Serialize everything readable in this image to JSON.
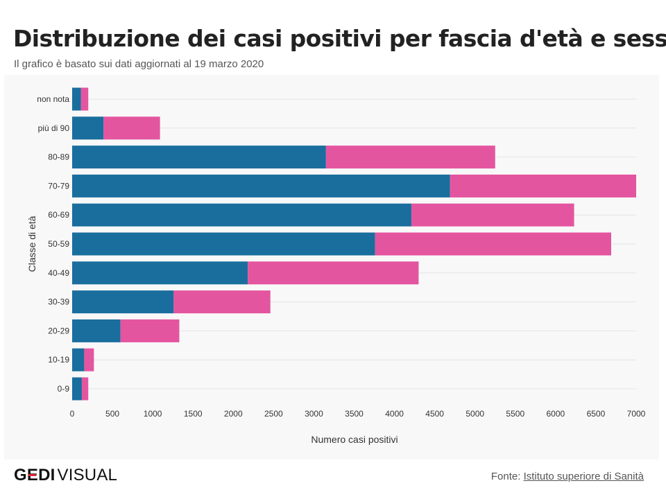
{
  "header": {
    "title": "Distribuzione dei casi positivi per fascia d'età e sesso",
    "subtitle": "Il grafico è basato sui dati aggiornati al 19 marzo 2020"
  },
  "footer": {
    "logo_bold_g": "G",
    "logo_bold_e": "E",
    "logo_bold_di": "DI",
    "logo_light": "VISUAL",
    "source_prefix": "Fonte:",
    "source_link": "Istituto superiore di Sanità"
  },
  "colors": {
    "male": "#1a6e9e",
    "female": "#e4559f",
    "grid": "#e3e3e3",
    "panel": "#f8f8f8",
    "logo_accent": "#e0283a"
  },
  "chart_data": {
    "type": "bar",
    "orientation": "horizontal",
    "stacked": true,
    "title": "Distribuzione dei casi positivi per fascia d'età e sesso",
    "subtitle": "Il grafico è basato sui dati aggiornati al 19 marzo 2020",
    "xlabel": "Numero casi positivi",
    "ylabel": "Classe di età",
    "categories": [
      "non nota",
      "più di 90",
      "80-89",
      "70-79",
      "60-69",
      "50-59",
      "40-49",
      "30-39",
      "20-29",
      "10-19",
      "0-9"
    ],
    "series": [
      {
        "color": "#1a6e9e",
        "values": [
          110,
          390,
          3150,
          4690,
          4210,
          3760,
          2180,
          1260,
          600,
          150,
          120
        ]
      },
      {
        "color": "#e4559f",
        "values": [
          90,
          700,
          2100,
          2310,
          2020,
          2930,
          2120,
          1200,
          730,
          120,
          80
        ]
      }
    ],
    "xlim": [
      0,
      7000
    ],
    "xticks": [
      0,
      500,
      1000,
      1500,
      2000,
      2500,
      3000,
      3500,
      4000,
      4500,
      5000,
      5500,
      6000,
      6500,
      7000
    ],
    "grid": true,
    "legend": "none"
  }
}
